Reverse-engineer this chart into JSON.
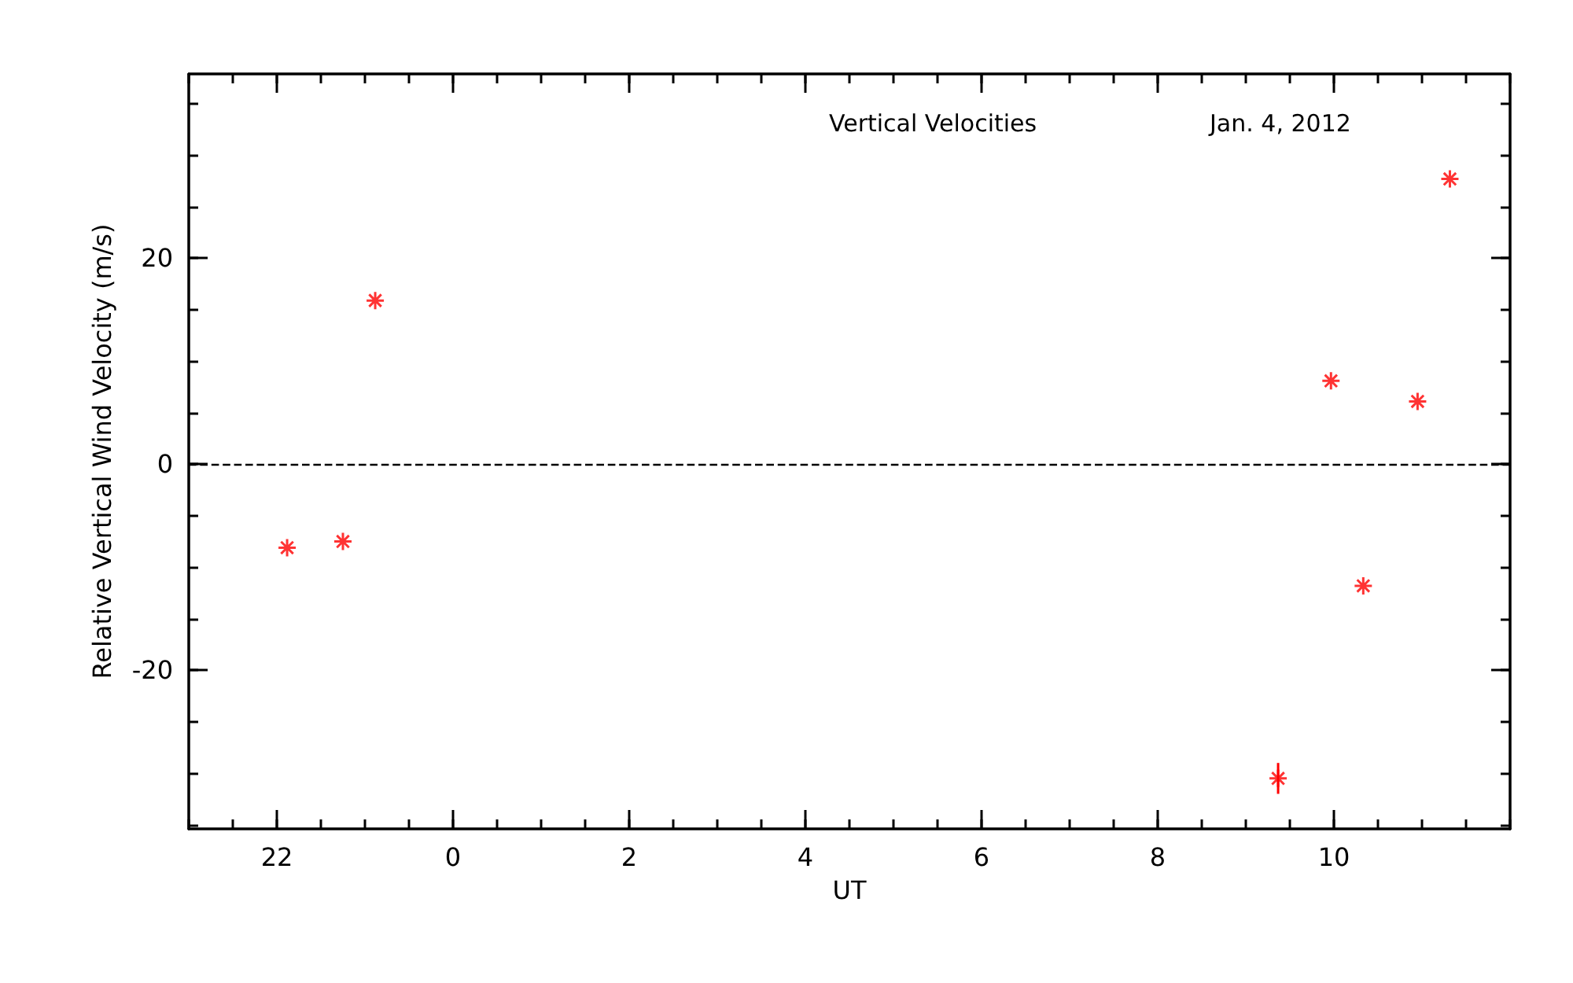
{
  "chart_data": {
    "type": "scatter",
    "title": "Vertical Velocities",
    "subtitle": "Jan. 4, 2012",
    "xlabel": "UT",
    "ylabel": "Relative Vertical Wind Velocity (m/s)",
    "x": [
      "2012-01-03T22:07",
      "2012-01-03T22:45",
      "2012-01-03T23:07",
      "2012-01-04T09:22",
      "2012-01-04T09:58",
      "2012-01-04T10:20",
      "2012-01-04T10:57",
      "2012-01-04T11:19"
    ],
    "series": [
      {
        "color": "#ff0000",
        "values": [
          -8.1,
          -7.5,
          15.9,
          -30.5,
          8.1,
          -11.8,
          6.1,
          27.7
        ],
        "errors": [
          null,
          null,
          null,
          1.5,
          null,
          null,
          null,
          null
        ]
      }
    ],
    "xlim": [
      "2012-01-03T21:00",
      "2012-01-04T12:00"
    ],
    "xticks": [
      {
        "value": "2012-01-03T22:00",
        "label": "22"
      },
      {
        "value": "2012-01-04T00:00",
        "label": "0"
      },
      {
        "value": "2012-01-04T02:00",
        "label": "2"
      },
      {
        "value": "2012-01-04T04:00",
        "label": "4"
      },
      {
        "value": "2012-01-04T06:00",
        "label": "6"
      },
      {
        "value": "2012-01-04T08:00",
        "label": "8"
      },
      {
        "value": "2012-01-04T10:00",
        "label": "10"
      }
    ],
    "ylim": [
      -35.4,
      37.9
    ],
    "yticks": [
      -20,
      0,
      20
    ],
    "ref_lines": [
      {
        "axis": "y",
        "value": 0,
        "color": "#000000",
        "line_style": "dashed"
      }
    ],
    "marker": "cross",
    "grid": false
  }
}
